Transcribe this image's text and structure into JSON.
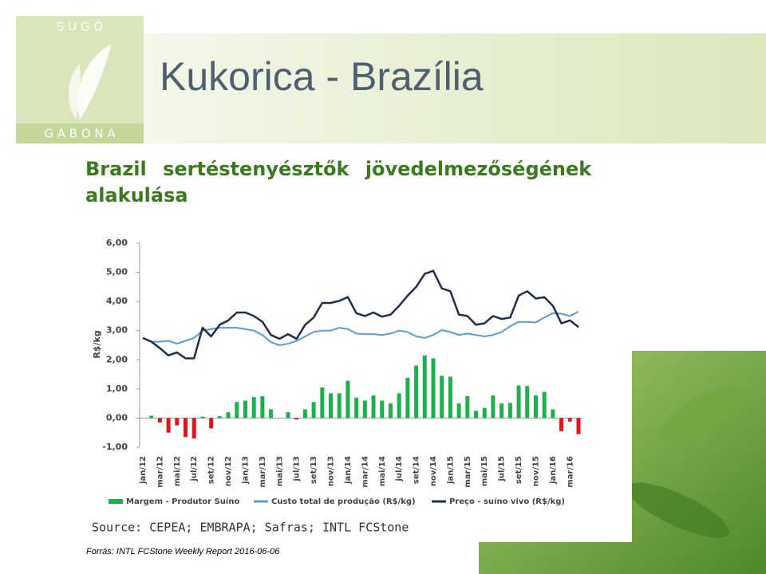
{
  "slide": {
    "logo_top": "S U G Ó",
    "logo_bottom": "G A B O N A",
    "title": "Kukorica - Brazília",
    "subtitle_lines": [
      "Brazil sertéstenyésztők jövedelmezőségének",
      "alakulása"
    ],
    "footer": "Forrás: INTL FCStone Weekly Report 2016-06-06"
  },
  "chart_data": {
    "type": "combo",
    "y_label": "R$/kg",
    "source": "Source: CEPEA; EMBRAPA; Safras; INTL FCStone",
    "categories": [
      "jan/12",
      null,
      "mar/12",
      null,
      "mai/12",
      null,
      "jul/12",
      null,
      "set/12",
      null,
      "nov/12",
      null,
      "jan/13",
      null,
      "mar/13",
      null,
      "mai/13",
      null,
      "jul/13",
      null,
      "set/13",
      null,
      "nov/13",
      null,
      "jan/14",
      null,
      "mar/14",
      null,
      "mai/14",
      null,
      "jul/14",
      null,
      "set/14",
      null,
      "nov/14",
      null,
      "jan/15",
      null,
      "mar/15",
      null,
      "mai/15",
      null,
      "jul/15",
      null,
      "set/15",
      null,
      "nov/15",
      null,
      "jan/16",
      null,
      "mar/16",
      null
    ],
    "ylim": [
      -1,
      6
    ],
    "yticks": [
      {
        "value": -1,
        "label": "-1,00"
      },
      {
        "value": 0,
        "label": "0,00"
      },
      {
        "value": 1,
        "label": "1,00"
      },
      {
        "value": 2,
        "label": "2,00"
      },
      {
        "value": 3,
        "label": "3,00"
      },
      {
        "value": 4,
        "label": "4,00"
      },
      {
        "value": 5,
        "label": "5,00"
      },
      {
        "value": 6,
        "label": "6,00"
      }
    ],
    "grid": false,
    "series": [
      {
        "name": "Margem - Produtor Suíno",
        "type": "bar",
        "color": "#1bb14c",
        "negative_color": "#e4141b",
        "values": [
          0,
          0.08,
          -0.15,
          -0.5,
          -0.25,
          -0.65,
          -0.7,
          0.05,
          -0.35,
          0.07,
          0.2,
          0.55,
          0.6,
          0.72,
          0.75,
          0.3,
          0,
          0.2,
          -0.05,
          0.3,
          0.55,
          1.05,
          0.85,
          0.85,
          1.28,
          0.7,
          0.6,
          0.78,
          0.6,
          0.5,
          0.85,
          1.38,
          1.8,
          2.15,
          2.05,
          1.45,
          1.42,
          0.5,
          0.75,
          0.25,
          0.35,
          0.78,
          0.5,
          0.52,
          1.12,
          1.1,
          0.78,
          0.9,
          0.3,
          -0.45,
          -0.12,
          -0.55
        ]
      },
      {
        "name": "Custo total de produção (R$/kg)",
        "type": "line",
        "color": "#5b9bd5",
        "values": [
          2.75,
          2.62,
          2.62,
          2.65,
          2.55,
          2.65,
          2.75,
          3.0,
          3.05,
          3.1,
          3.1,
          3.1,
          3.05,
          3.0,
          2.85,
          2.6,
          2.5,
          2.55,
          2.65,
          2.8,
          2.95,
          3.0,
          3.0,
          3.1,
          3.05,
          2.9,
          2.88,
          2.88,
          2.85,
          2.9,
          3.0,
          2.95,
          2.8,
          2.75,
          2.85,
          3.02,
          2.95,
          2.85,
          2.9,
          2.85,
          2.8,
          2.85,
          2.95,
          3.15,
          3.3,
          3.3,
          3.28,
          3.45,
          3.6,
          3.58,
          3.5,
          3.65
        ]
      },
      {
        "name": "Preço - suíno vivo (R$/kg)",
        "type": "line",
        "color": "#1f2d4e",
        "values": [
          2.75,
          2.62,
          2.4,
          2.15,
          2.25,
          2.05,
          2.05,
          3.1,
          2.8,
          3.2,
          3.35,
          3.62,
          3.62,
          3.5,
          3.3,
          2.85,
          2.72,
          2.88,
          2.72,
          3.2,
          3.45,
          3.95,
          3.95,
          4.02,
          4.15,
          3.6,
          3.5,
          3.62,
          3.48,
          3.55,
          3.85,
          4.2,
          4.5,
          4.95,
          5.05,
          4.45,
          4.35,
          3.55,
          3.5,
          3.2,
          3.25,
          3.5,
          3.4,
          3.45,
          4.2,
          4.35,
          4.1,
          4.15,
          3.85,
          3.25,
          3.35,
          3.12
        ]
      }
    ]
  }
}
